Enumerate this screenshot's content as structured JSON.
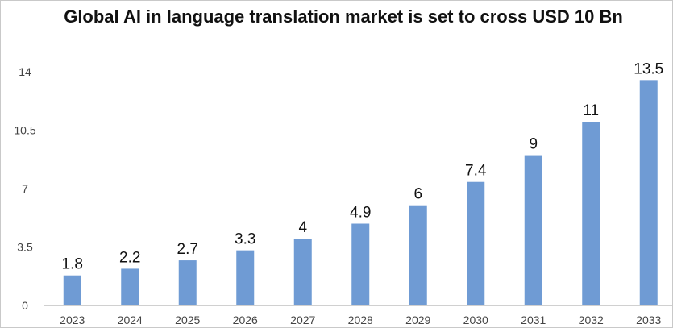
{
  "chart_data": {
    "type": "bar",
    "title": "Global AI in language translation market is set to cross USD 10 Bn",
    "xlabel": "",
    "ylabel": "",
    "categories": [
      "2023",
      "2024",
      "2025",
      "2026",
      "2027",
      "2028",
      "2029",
      "2030",
      "2031",
      "2032",
      "2033"
    ],
    "values": [
      1.8,
      2.2,
      2.7,
      3.3,
      4,
      4.9,
      6,
      7.4,
      9,
      11,
      13.5
    ],
    "value_labels": [
      "1.8",
      "2.2",
      "2.7",
      "3.3",
      "4",
      "4.9",
      "6",
      "7.4",
      "9",
      "11",
      "13.5"
    ],
    "yticks": [
      0,
      3.5,
      7,
      10.5,
      14
    ],
    "ytick_labels": [
      "0",
      "3.5",
      "7",
      "10.5",
      "14"
    ],
    "ylim": [
      0,
      14
    ],
    "grid": false,
    "legend": "none",
    "bar_color": "#6f9bd4"
  }
}
